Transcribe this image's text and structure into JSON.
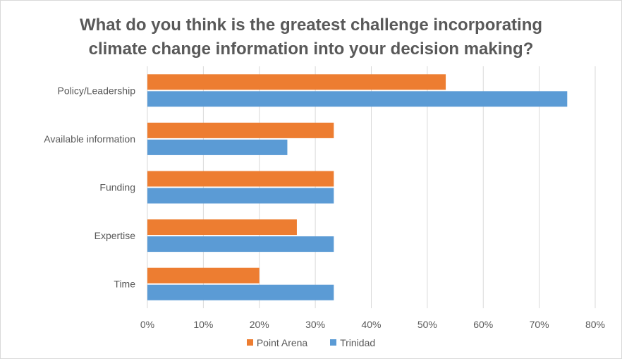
{
  "chart_data": {
    "type": "bar",
    "orientation": "horizontal",
    "title_lines": [
      "What do you think is the greatest challenge incorporating",
      "climate change information into your decision making?"
    ],
    "categories": [
      "Policy/Leadership",
      "Available information",
      "Funding",
      "Expertise",
      "Time"
    ],
    "series": [
      {
        "name": "Point Arena",
        "color": "#ed7d31",
        "values": [
          53.3,
          33.3,
          33.3,
          26.7,
          20.0
        ]
      },
      {
        "name": "Trinidad",
        "color": "#5b9bd5",
        "values": [
          75.0,
          25.0,
          33.3,
          33.3,
          33.3
        ]
      }
    ],
    "xlim": [
      0,
      80
    ],
    "xticks": [
      "0%",
      "10%",
      "20%",
      "30%",
      "40%",
      "50%",
      "60%",
      "70%",
      "80%"
    ],
    "grid": true,
    "legend": "bottom"
  }
}
